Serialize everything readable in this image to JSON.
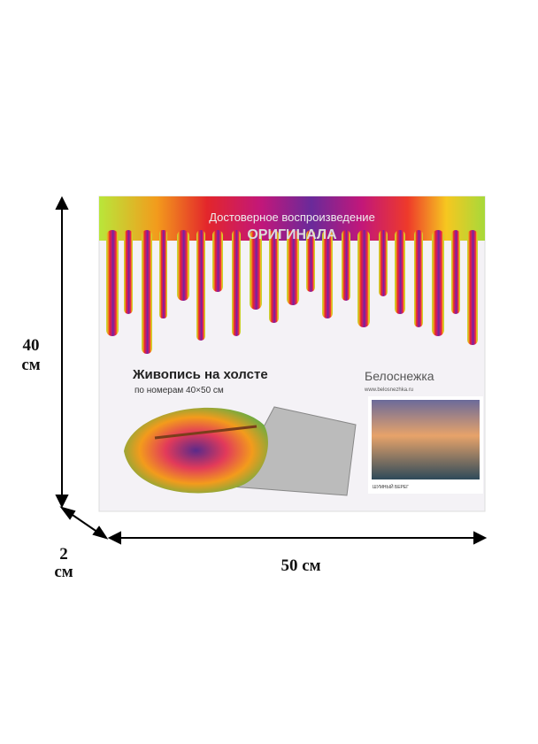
{
  "box": {
    "slogan": "Достоверное воспроизведение",
    "slogan_emphasis": "ОРИГИНАЛА",
    "title": "Живопись на холсте",
    "subtitle": "по номерам 40×50 см",
    "brand": "Белоснежка",
    "website": "www.belosnezhka.ru",
    "picture_title": "ШУМНЫЙ БЕРЕГ"
  },
  "dimensions": {
    "height": {
      "number": "40",
      "unit": "см"
    },
    "depth": {
      "number": "2",
      "unit": "см"
    },
    "width": "50 см"
  }
}
